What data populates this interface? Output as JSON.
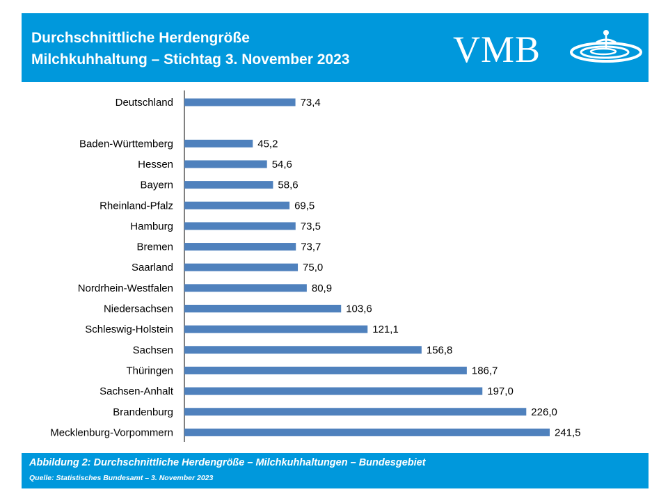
{
  "header": {
    "title_line1": "Durchschnittliche Herdengröße",
    "title_line2": "Milchkuhhaltung – Stichtag 3. November 2023",
    "logo_text": "VMB"
  },
  "chart_data": {
    "type": "bar",
    "orientation": "horizontal",
    "categories": [
      "Deutschland",
      "",
      "Baden-Württemberg",
      "Hessen",
      "Bayern",
      "Rheinland-Pfalz",
      "Hamburg",
      "Bremen",
      "Saarland",
      "Nordrhein-Westfalen",
      "Niedersachsen",
      "Schleswig-Holstein",
      "Sachsen",
      "Thüringen",
      "Sachsen-Anhalt",
      "Brandenburg",
      "Mecklenburg-Vorpommern"
    ],
    "values": [
      73.4,
      null,
      45.2,
      54.6,
      58.6,
      69.5,
      73.5,
      73.7,
      75.0,
      80.9,
      103.6,
      121.1,
      156.8,
      186.7,
      197.0,
      226.0,
      241.5
    ],
    "value_labels": [
      "73,4",
      "",
      "45,2",
      "54,6",
      "58,6",
      "69,5",
      "73,5",
      "73,7",
      "75,0",
      "80,9",
      "103,6",
      "121,1",
      "156,8",
      "186,7",
      "197,0",
      "226,0",
      "241,5"
    ],
    "xlim": [
      0,
      250
    ],
    "grid": false,
    "legend": "none",
    "bar_color": "#4f81bd"
  },
  "footer": {
    "caption": "Abbildung 2: Durchschnittliche Herdengröße – Milchkuhhaltungen – Bundesgebiet",
    "source": "Quelle: Statistisches Bundesamt – 3. November 2023"
  },
  "colors": {
    "accent": "#0098dc",
    "bar": "#4f81bd",
    "axis": "#000000"
  }
}
